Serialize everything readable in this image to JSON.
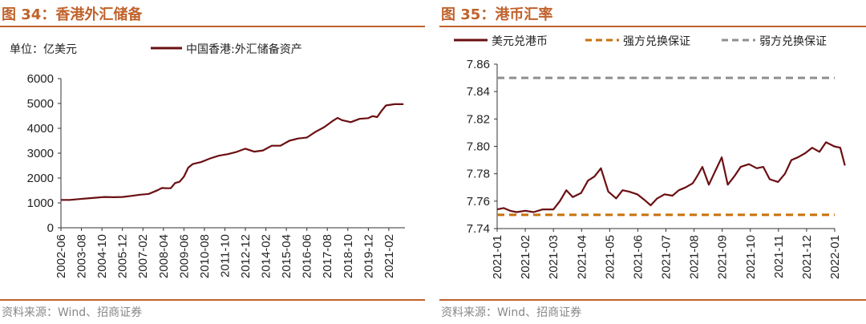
{
  "colors": {
    "accent": "#c0622b",
    "series_main": "#6b0f12",
    "strong_guarantee": "#c8700a",
    "weak_guarantee": "#8f8f8f",
    "source_text": "#888888"
  },
  "left_panel": {
    "title": "图 34：香港外汇储备",
    "source": "资料来源：Wind、招商证券",
    "unit_label": "单位：亿美元"
  },
  "right_panel": {
    "title": "图 35：港币汇率",
    "source": "资料来源：Wind、招商证券"
  },
  "chart_data": [
    {
      "type": "line",
      "unit": "单位：亿美元",
      "legend_position": "top",
      "grid": false,
      "ylim": [
        0,
        6000
      ],
      "yticks": [
        0,
        1000,
        2000,
        3000,
        4000,
        5000,
        6000
      ],
      "xlim": [
        "2002-06",
        "2022-01"
      ],
      "xticks": [
        "2002-06",
        "2003-08",
        "2004-10",
        "2005-12",
        "2007-02",
        "2008-04",
        "2009-06",
        "2010-08",
        "2011-10",
        "2012-12",
        "2014-02",
        "2015-04",
        "2016-06",
        "2017-08",
        "2018-10",
        "2019-12",
        "2021-02"
      ],
      "series": [
        {
          "name": "中国香港:外汇储备资产",
          "x": [
            "2002-06",
            "2002-12",
            "2003-06",
            "2003-12",
            "2004-06",
            "2004-12",
            "2005-06",
            "2005-12",
            "2006-06",
            "2006-12",
            "2007-06",
            "2007-12",
            "2008-03",
            "2008-06",
            "2008-09",
            "2008-12",
            "2009-03",
            "2009-06",
            "2009-09",
            "2009-12",
            "2010-06",
            "2010-12",
            "2011-06",
            "2011-12",
            "2012-06",
            "2012-12",
            "2013-06",
            "2013-12",
            "2014-06",
            "2014-12",
            "2015-06",
            "2015-12",
            "2016-06",
            "2016-12",
            "2017-06",
            "2017-12",
            "2018-03",
            "2018-06",
            "2018-12",
            "2019-06",
            "2019-12",
            "2020-03",
            "2020-06",
            "2020-09",
            "2020-12",
            "2021-06",
            "2021-12"
          ],
          "y": [
            1120,
            1120,
            1150,
            1180,
            1210,
            1240,
            1230,
            1240,
            1280,
            1330,
            1360,
            1510,
            1600,
            1590,
            1590,
            1800,
            1850,
            2050,
            2420,
            2560,
            2650,
            2790,
            2900,
            2960,
            3050,
            3180,
            3060,
            3110,
            3300,
            3300,
            3500,
            3590,
            3630,
            3860,
            4050,
            4310,
            4420,
            4330,
            4250,
            4380,
            4410,
            4490,
            4450,
            4700,
            4920,
            4970,
            4970
          ]
        }
      ]
    },
    {
      "type": "line",
      "legend_position": "top",
      "grid": false,
      "ylim": [
        7.74,
        7.86
      ],
      "yticks": [
        7.74,
        7.76,
        7.78,
        7.8,
        7.82,
        7.84,
        7.86
      ],
      "xlim": [
        "2021-01",
        "2022-01"
      ],
      "xticks": [
        "2021-01",
        "2021-02",
        "2021-03",
        "2021-04",
        "2021-05",
        "2021-06",
        "2021-07",
        "2021-08",
        "2021-09",
        "2021-10",
        "2021-11",
        "2021-12",
        "2022-01"
      ],
      "series": [
        {
          "name": "美元兑港币",
          "x": [
            "2021-01-01",
            "2021-01-08",
            "2021-01-15",
            "2021-01-22",
            "2021-02-01",
            "2021-02-10",
            "2021-02-20",
            "2021-03-01",
            "2021-03-08",
            "2021-03-15",
            "2021-03-22",
            "2021-03-31",
            "2021-04-08",
            "2021-04-15",
            "2021-04-22",
            "2021-04-30",
            "2021-05-08",
            "2021-05-15",
            "2021-05-22",
            "2021-05-31",
            "2021-06-08",
            "2021-06-15",
            "2021-06-22",
            "2021-06-30",
            "2021-07-08",
            "2021-07-15",
            "2021-07-22",
            "2021-07-30",
            "2021-08-05",
            "2021-08-10",
            "2021-08-17",
            "2021-08-24",
            "2021-08-31",
            "2021-09-07",
            "2021-09-14",
            "2021-09-21",
            "2021-09-30",
            "2021-10-08",
            "2021-10-15",
            "2021-10-22",
            "2021-10-31",
            "2021-11-08",
            "2021-11-15",
            "2021-11-22",
            "2021-11-30",
            "2021-12-07",
            "2021-12-15",
            "2021-12-22",
            "2021-12-31",
            "2022-01-07",
            "2022-01-12"
          ],
          "y": [
            7.754,
            7.755,
            7.753,
            7.752,
            7.753,
            7.752,
            7.754,
            7.754,
            7.76,
            7.768,
            7.763,
            7.766,
            7.775,
            7.778,
            7.784,
            7.767,
            7.762,
            7.768,
            7.767,
            7.765,
            7.761,
            7.757,
            7.762,
            7.765,
            7.764,
            7.768,
            7.77,
            7.773,
            7.779,
            7.785,
            7.772,
            7.782,
            7.792,
            7.772,
            7.778,
            7.785,
            7.787,
            7.784,
            7.785,
            7.776,
            7.774,
            7.78,
            7.79,
            7.792,
            7.795,
            7.799,
            7.796,
            7.803,
            7.8,
            7.799,
            7.786
          ]
        },
        {
          "name": "强方兑换保证",
          "x": [
            "2021-01",
            "2022-01"
          ],
          "y": [
            7.75,
            7.75
          ]
        },
        {
          "name": "弱方兑换保证",
          "x": [
            "2021-01",
            "2022-01"
          ],
          "y": [
            7.85,
            7.85
          ]
        }
      ]
    }
  ]
}
